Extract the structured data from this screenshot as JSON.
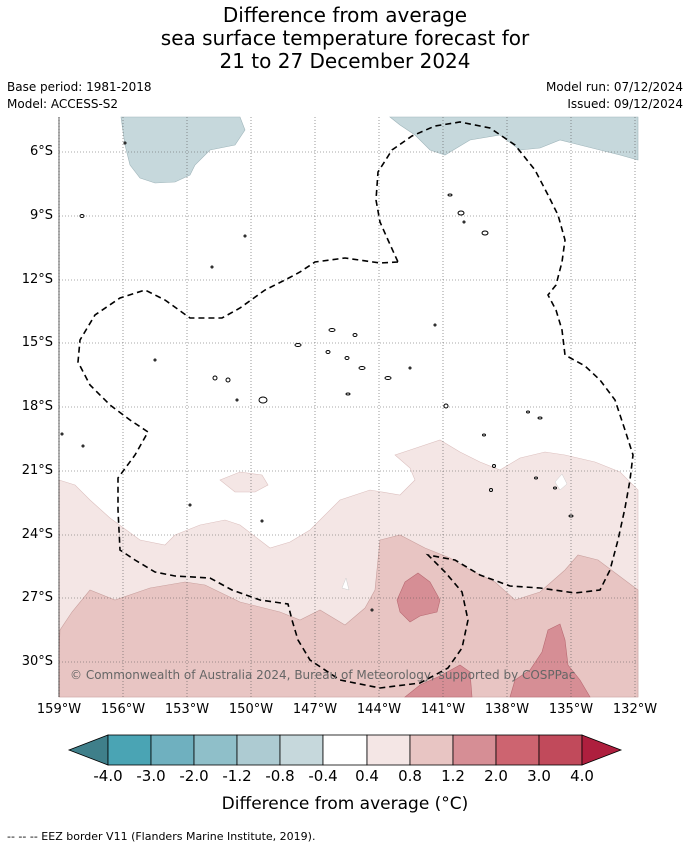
{
  "title": {
    "line1": "Difference from average",
    "line2": "sea surface temperature forecast for",
    "line3": "21 to 27 December 2024"
  },
  "meta": {
    "base_period": "Base period: 1981-2018",
    "model": "Model: ACCESS-S2",
    "model_run": "Model run: 07/12/2024",
    "issued": "Issued: 09/12/2024"
  },
  "map": {
    "lat_labels": [
      "6°S",
      "9°S",
      "12°S",
      "15°S",
      "18°S",
      "21°S",
      "24°S",
      "27°S",
      "30°S"
    ],
    "lon_labels": [
      "159°W",
      "156°W",
      "153°W",
      "150°W",
      "147°W",
      "144°W",
      "141°W",
      "138°W",
      "135°W",
      "132°W"
    ],
    "copyright": "© Commonwealth of Australia 2024, Bureau of Meteorology, supported by COSPPac",
    "colors": {
      "cool_light": "#c6d8dc",
      "warm_pale": "#f4e6e5",
      "warm_light": "#e8c5c3",
      "warm_mid": "#d68e95",
      "land": "#555555"
    }
  },
  "colorbar": {
    "ticks": [
      "-4.0",
      "-3.0",
      "-2.0",
      "-1.2",
      "-0.8",
      "-0.4",
      "0.4",
      "0.8",
      "1.2",
      "2.0",
      "3.0",
      "4.0"
    ],
    "colors": [
      "#3f7f8a",
      "#4aa4b4",
      "#6fb0bf",
      "#8fbfc9",
      "#adcbd2",
      "#c6d8dc",
      "#ffffff",
      "#f4e6e5",
      "#e8c5c3",
      "#d68e95",
      "#cd6470",
      "#c14a5b",
      "#ae1f3e"
    ],
    "label": "Difference from average (°C)"
  },
  "footnote": "--  --  -- EEZ border V11 (Flanders Marine Institute, 2019)."
}
